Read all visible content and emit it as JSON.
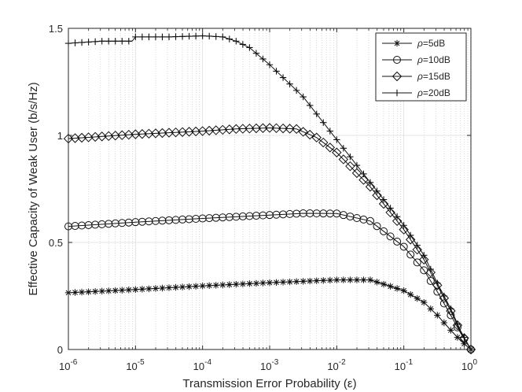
{
  "chart_data": {
    "type": "line",
    "title": "",
    "xlabel": "Transmission Error Probability (ε)",
    "ylabel": "Effective Capacity of Weak User (b/s/Hz)",
    "xscale": "log",
    "xlim": [
      1e-06,
      1
    ],
    "ylim": [
      0,
      1.5
    ],
    "xticks": [
      1e-06,
      1e-05,
      0.0001,
      0.001,
      0.01,
      0.1,
      1
    ],
    "xtick_bases": [
      "10",
      "10",
      "10",
      "10",
      "10",
      "10",
      "10"
    ],
    "xtick_exps": [
      "-6",
      "-5",
      "-4",
      "-3",
      "-2",
      "-1",
      "0"
    ],
    "yticks": [
      0,
      0.5,
      1,
      1.5
    ],
    "ytick_labels": [
      "0",
      "0.5",
      "1",
      "1.5"
    ],
    "grid": true,
    "legend_position": "top-right",
    "series": [
      {
        "name": "ρ=5dB",
        "legend_symbol": "ρ",
        "legend_suffix": "=5dB",
        "marker": "asterisk",
        "log10_x": [
          -6,
          -5,
          -4,
          -3,
          -2,
          -1.5,
          -1,
          -0.7,
          -0.5,
          -0.3,
          -0.15,
          0
        ],
        "y": [
          0.265,
          0.28,
          0.297,
          0.312,
          0.325,
          0.325,
          0.275,
          0.22,
          0.16,
          0.09,
          0.04,
          0
        ]
      },
      {
        "name": "ρ=10dB",
        "legend_symbol": "ρ",
        "legend_suffix": "=10dB",
        "marker": "circle",
        "log10_x": [
          -6,
          -5,
          -4,
          -3,
          -2.5,
          -2,
          -1.5,
          -1,
          -0.7,
          -0.5,
          -0.3,
          -0.15,
          0
        ],
        "y": [
          0.575,
          0.595,
          0.612,
          0.628,
          0.636,
          0.635,
          0.6,
          0.48,
          0.37,
          0.27,
          0.16,
          0.075,
          0
        ]
      },
      {
        "name": "ρ=15dB",
        "legend_symbol": "ρ",
        "legend_suffix": "=15dB",
        "marker": "diamond",
        "log10_x": [
          -6,
          -5,
          -4,
          -3.5,
          -3,
          -2.6,
          -2.3,
          -2,
          -1.5,
          -1,
          -0.7,
          -0.5,
          -0.3,
          -0.15,
          0
        ],
        "y": [
          0.985,
          1.005,
          1.02,
          1.03,
          1.035,
          1.03,
          0.99,
          0.92,
          0.76,
          0.56,
          0.42,
          0.3,
          0.18,
          0.08,
          0
        ]
      },
      {
        "name": "ρ=20dB",
        "legend_symbol": "ρ",
        "legend_suffix": "=20dB",
        "marker": "plus",
        "log10_x": [
          -6,
          -5.5,
          -5.05,
          -5,
          -4.5,
          -4,
          -3.7,
          -3.5,
          -3.3,
          -3,
          -2.5,
          -2,
          -1.5,
          -1,
          -0.7,
          -0.5,
          -0.3,
          -0.15,
          0
        ],
        "y": [
          1.43,
          1.44,
          1.44,
          1.46,
          1.46,
          1.465,
          1.46,
          1.44,
          1.41,
          1.33,
          1.18,
          0.98,
          0.78,
          0.58,
          0.44,
          0.31,
          0.19,
          0.085,
          0
        ]
      }
    ]
  }
}
